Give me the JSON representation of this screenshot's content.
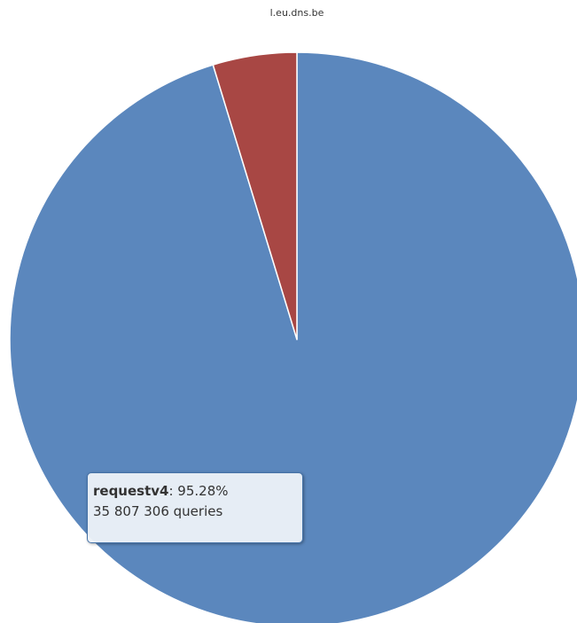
{
  "chart_data": {
    "type": "pie",
    "title": "l.eu.dns.be",
    "slices": [
      {
        "name": "requestv4",
        "percent": 95.28,
        "color": "#5b87bd"
      },
      {
        "name": "",
        "percent": 4.72,
        "color": "#a84744"
      }
    ],
    "slice_border_color": "#ffffff"
  },
  "tooltip": {
    "series_name": "requestv4",
    "percent_text": ": 95.28%",
    "queries_text": "35 807 306 queries"
  }
}
